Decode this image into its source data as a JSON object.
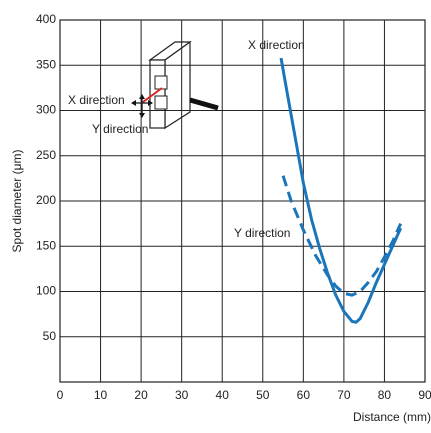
{
  "chart_data": {
    "type": "line",
    "x_label": "Distance (mm)",
    "y_label": "Spot diameter (μm)",
    "xlim": [
      0,
      90
    ],
    "xticks": [
      0,
      10,
      20,
      30,
      40,
      50,
      60,
      70,
      80,
      90
    ],
    "ylim": [
      0,
      400
    ],
    "yticks": [
      50,
      100,
      150,
      200,
      250,
      300,
      350,
      400
    ],
    "grid": true,
    "series": [
      {
        "name": "X direction",
        "color": "#1b75bb",
        "dashed": false,
        "x": [
          54.5,
          56,
          58,
          60,
          62,
          64,
          66,
          68,
          70,
          72,
          73,
          74,
          76,
          78,
          80,
          82,
          84
        ],
        "values": [
          358,
          320,
          270,
          220,
          180,
          148,
          120,
          96,
          78,
          67,
          66,
          70,
          88,
          110,
          130,
          150,
          170
        ]
      },
      {
        "name": "Y direction",
        "color": "#1b75bb",
        "dashed": true,
        "x": [
          55,
          57,
          60,
          63,
          66,
          68,
          70,
          72,
          74,
          76,
          78,
          80,
          82,
          84
        ],
        "values": [
          228,
          200,
          168,
          140,
          118,
          106,
          98,
          96,
          100,
          110,
          122,
          138,
          155,
          175
        ]
      }
    ],
    "inset_labels": [
      "X direction",
      "Y direction"
    ]
  }
}
